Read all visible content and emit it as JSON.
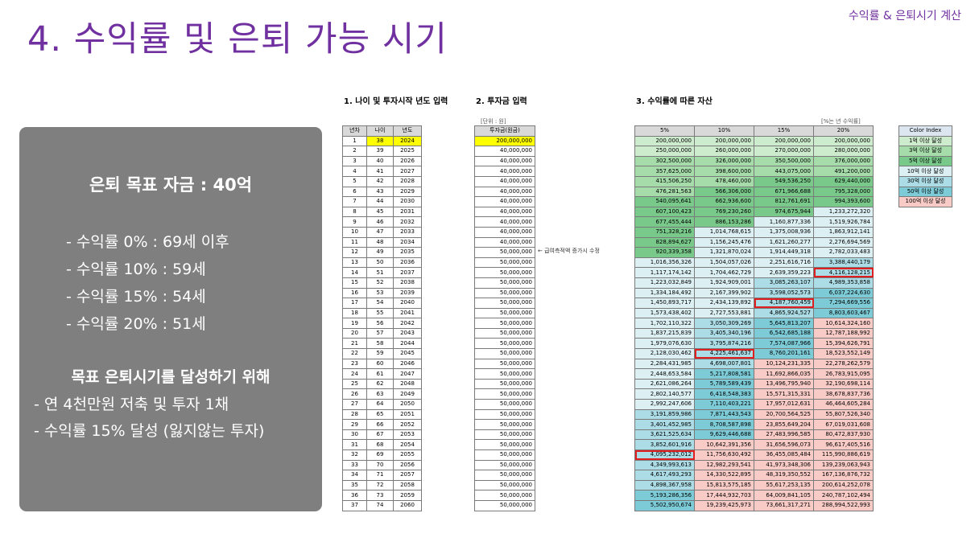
{
  "header": {
    "tag": "수익률 & 은퇴시기 계산",
    "title": "4. 수익률 및 은퇴 가능 시기"
  },
  "panel": {
    "goal": "은퇴 목표 자금 : 40억",
    "rates": [
      "- 수익률   0% : 69세 이후",
      "- 수익률 10% : 59세",
      "- 수익률 15% : 54세",
      "- 수익률 20% : 51세"
    ],
    "plan_title": "목표 은퇴시기를 달성하기 위해",
    "plan_items": [
      "- 연 4천만원 저축 및 투자 1채",
      "- 수익률 15% 달성 (잃지않는 투자)"
    ]
  },
  "sections": {
    "s1": "1. 나이 및 투자시작 년도 입력",
    "s2": "2. 투자금 입력",
    "s3": "3. 수익률에 따른 자산",
    "unit_note": "[단위 : 원]",
    "rate_note": "[%는 년 수익률]",
    "arrow_note": "← 급여측적액 증가시 수정"
  },
  "table1": {
    "headers": [
      "년차",
      "나이",
      "년도"
    ],
    "rows": [
      [
        "1",
        "38",
        "2024"
      ],
      [
        "2",
        "39",
        "2025"
      ],
      [
        "3",
        "40",
        "2026"
      ],
      [
        "4",
        "41",
        "2027"
      ],
      [
        "5",
        "42",
        "2028"
      ],
      [
        "6",
        "43",
        "2029"
      ],
      [
        "7",
        "44",
        "2030"
      ],
      [
        "8",
        "45",
        "2031"
      ],
      [
        "9",
        "46",
        "2032"
      ],
      [
        "10",
        "47",
        "2033"
      ],
      [
        "11",
        "48",
        "2034"
      ],
      [
        "12",
        "49",
        "2035"
      ],
      [
        "13",
        "50",
        "2036"
      ],
      [
        "14",
        "51",
        "2037"
      ],
      [
        "15",
        "52",
        "2038"
      ],
      [
        "16",
        "53",
        "2039"
      ],
      [
        "17",
        "54",
        "2040"
      ],
      [
        "18",
        "55",
        "2041"
      ],
      [
        "19",
        "56",
        "2042"
      ],
      [
        "20",
        "57",
        "2043"
      ],
      [
        "21",
        "58",
        "2044"
      ],
      [
        "22",
        "59",
        "2045"
      ],
      [
        "23",
        "60",
        "2046"
      ],
      [
        "24",
        "61",
        "2047"
      ],
      [
        "25",
        "62",
        "2048"
      ],
      [
        "26",
        "63",
        "2049"
      ],
      [
        "27",
        "64",
        "2050"
      ],
      [
        "28",
        "65",
        "2051"
      ],
      [
        "29",
        "66",
        "2052"
      ],
      [
        "30",
        "67",
        "2053"
      ],
      [
        "31",
        "68",
        "2054"
      ],
      [
        "32",
        "69",
        "2055"
      ],
      [
        "33",
        "70",
        "2056"
      ],
      [
        "34",
        "71",
        "2057"
      ],
      [
        "35",
        "72",
        "2058"
      ],
      [
        "36",
        "73",
        "2059"
      ],
      [
        "37",
        "74",
        "2060"
      ]
    ]
  },
  "table2": {
    "header": "투자금(원금)",
    "values": [
      "200,000,000",
      "40,000,000",
      "40,000,000",
      "40,000,000",
      "40,000,000",
      "40,000,000",
      "40,000,000",
      "40,000,000",
      "40,000,000",
      "40,000,000",
      "40,000,000",
      "50,000,000",
      "50,000,000",
      "50,000,000",
      "50,000,000",
      "50,000,000",
      "50,000,000",
      "50,000,000",
      "50,000,000",
      "50,000,000",
      "50,000,000",
      "50,000,000",
      "50,000,000",
      "50,000,000",
      "50,000,000",
      "50,000,000",
      "50,000,000",
      "50,000,000",
      "50,000,000",
      "50,000,000",
      "50,000,000",
      "50,000,000",
      "50,000,000",
      "50,000,000",
      "50,000,000",
      "50,000,000",
      "50,000,000"
    ]
  },
  "table3": {
    "headers": [
      "5%",
      "10%",
      "15%",
      "20%"
    ],
    "rows": [
      [
        "200,000,000",
        "200,000,000",
        "200,000,000",
        "200,000,000"
      ],
      [
        "250,000,000",
        "260,000,000",
        "270,000,000",
        "280,000,000"
      ],
      [
        "302,500,000",
        "326,000,000",
        "350,500,000",
        "376,000,000"
      ],
      [
        "357,625,000",
        "398,600,000",
        "443,075,000",
        "491,200,000"
      ],
      [
        "415,506,250",
        "478,460,000",
        "549,536,250",
        "629,440,000"
      ],
      [
        "476,281,563",
        "566,306,000",
        "671,966,688",
        "795,328,000"
      ],
      [
        "540,095,641",
        "662,936,600",
        "812,761,691",
        "994,393,600"
      ],
      [
        "607,100,423",
        "769,230,260",
        "974,675,944",
        "1,233,272,320"
      ],
      [
        "677,455,444",
        "886,153,286",
        "1,160,877,336",
        "1,519,926,784"
      ],
      [
        "751,328,216",
        "1,014,768,615",
        "1,375,008,936",
        "1,863,912,141"
      ],
      [
        "828,894,627",
        "1,156,245,476",
        "1,621,260,277",
        "2,276,694,569"
      ],
      [
        "920,339,358",
        "1,321,870,024",
        "1,914,449,318",
        "2,782,033,483"
      ],
      [
        "1,016,356,326",
        "1,504,057,026",
        "2,251,616,716",
        "3,388,440,179"
      ],
      [
        "1,117,174,142",
        "1,704,462,729",
        "2,639,359,223",
        "4,116,128,215"
      ],
      [
        "1,223,032,849",
        "1,924,909,001",
        "3,085,263,107",
        "4,989,353,858"
      ],
      [
        "1,334,184,492",
        "2,167,399,902",
        "3,598,052,573",
        "6,037,224,630"
      ],
      [
        "1,450,893,717",
        "2,434,139,892",
        "4,187,760,459",
        "7,294,669,556"
      ],
      [
        "1,573,438,402",
        "2,727,553,881",
        "4,865,924,527",
        "8,803,603,467"
      ],
      [
        "1,702,110,322",
        "3,050,309,269",
        "5,645,813,207",
        "10,614,324,160"
      ],
      [
        "1,837,215,839",
        "3,405,340,196",
        "6,542,685,188",
        "12,787,188,992"
      ],
      [
        "1,979,076,630",
        "3,795,874,216",
        "7,574,087,966",
        "15,394,626,791"
      ],
      [
        "2,128,030,462",
        "4,225,461,637",
        "8,760,201,161",
        "18,523,552,149"
      ],
      [
        "2,284,431,985",
        "4,698,007,801",
        "10,124,231,335",
        "22,278,262,579"
      ],
      [
        "2,448,653,584",
        "5,217,808,581",
        "11,692,866,035",
        "26,783,915,095"
      ],
      [
        "2,621,086,264",
        "5,789,589,439",
        "13,496,795,940",
        "32,190,698,114"
      ],
      [
        "2,802,140,577",
        "6,418,548,383",
        "15,571,315,331",
        "38,678,837,736"
      ],
      [
        "2,992,247,606",
        "7,110,403,221",
        "17,957,012,631",
        "46,464,605,284"
      ],
      [
        "3,191,859,986",
        "7,871,443,543",
        "20,700,564,525",
        "55,807,526,340"
      ],
      [
        "3,401,452,985",
        "8,708,587,898",
        "23,855,649,204",
        "67,019,031,608"
      ],
      [
        "3,621,525,634",
        "9,629,446,688",
        "27,483,996,585",
        "80,472,837,930"
      ],
      [
        "3,852,601,916",
        "10,642,391,356",
        "31,656,596,073",
        "96,617,405,516"
      ],
      [
        "4,095,232,012",
        "11,756,630,492",
        "36,455,085,484",
        "115,990,886,619"
      ],
      [
        "4,349,993,613",
        "12,982,293,541",
        "41,973,348,306",
        "139,239,063,943"
      ],
      [
        "4,617,493,293",
        "14,330,522,895",
        "48,319,350,552",
        "167,136,876,732"
      ],
      [
        "4,898,367,958",
        "15,813,575,185",
        "55,617,253,135",
        "200,614,252,078"
      ],
      [
        "5,193,286,356",
        "17,444,932,703",
        "64,009,841,105",
        "240,787,102,494"
      ],
      [
        "5,502,950,674",
        "19,239,425,973",
        "73,661,317,271",
        "288,994,522,993"
      ]
    ]
  },
  "highlights": [
    [
      13,
      3
    ],
    [
      16,
      2
    ],
    [
      21,
      1
    ],
    [
      31,
      0
    ]
  ],
  "legend": {
    "title": "Color Index",
    "items": [
      {
        "label": "1억 이상 달성",
        "color": "#cdeccd"
      },
      {
        "label": "3억 이상 달성",
        "color": "#a5dcaa"
      },
      {
        "label": "5억 이상 달성",
        "color": "#79c98a"
      },
      {
        "label": "10억 이상 달성",
        "color": "#dcf0f4"
      },
      {
        "label": "30억 이상 달성",
        "color": "#acdde6"
      },
      {
        "label": "50억 이상 달성",
        "color": "#7ccbd7"
      },
      {
        "label": "100억 이상 달성",
        "color": "#f8cbc6"
      }
    ]
  }
}
